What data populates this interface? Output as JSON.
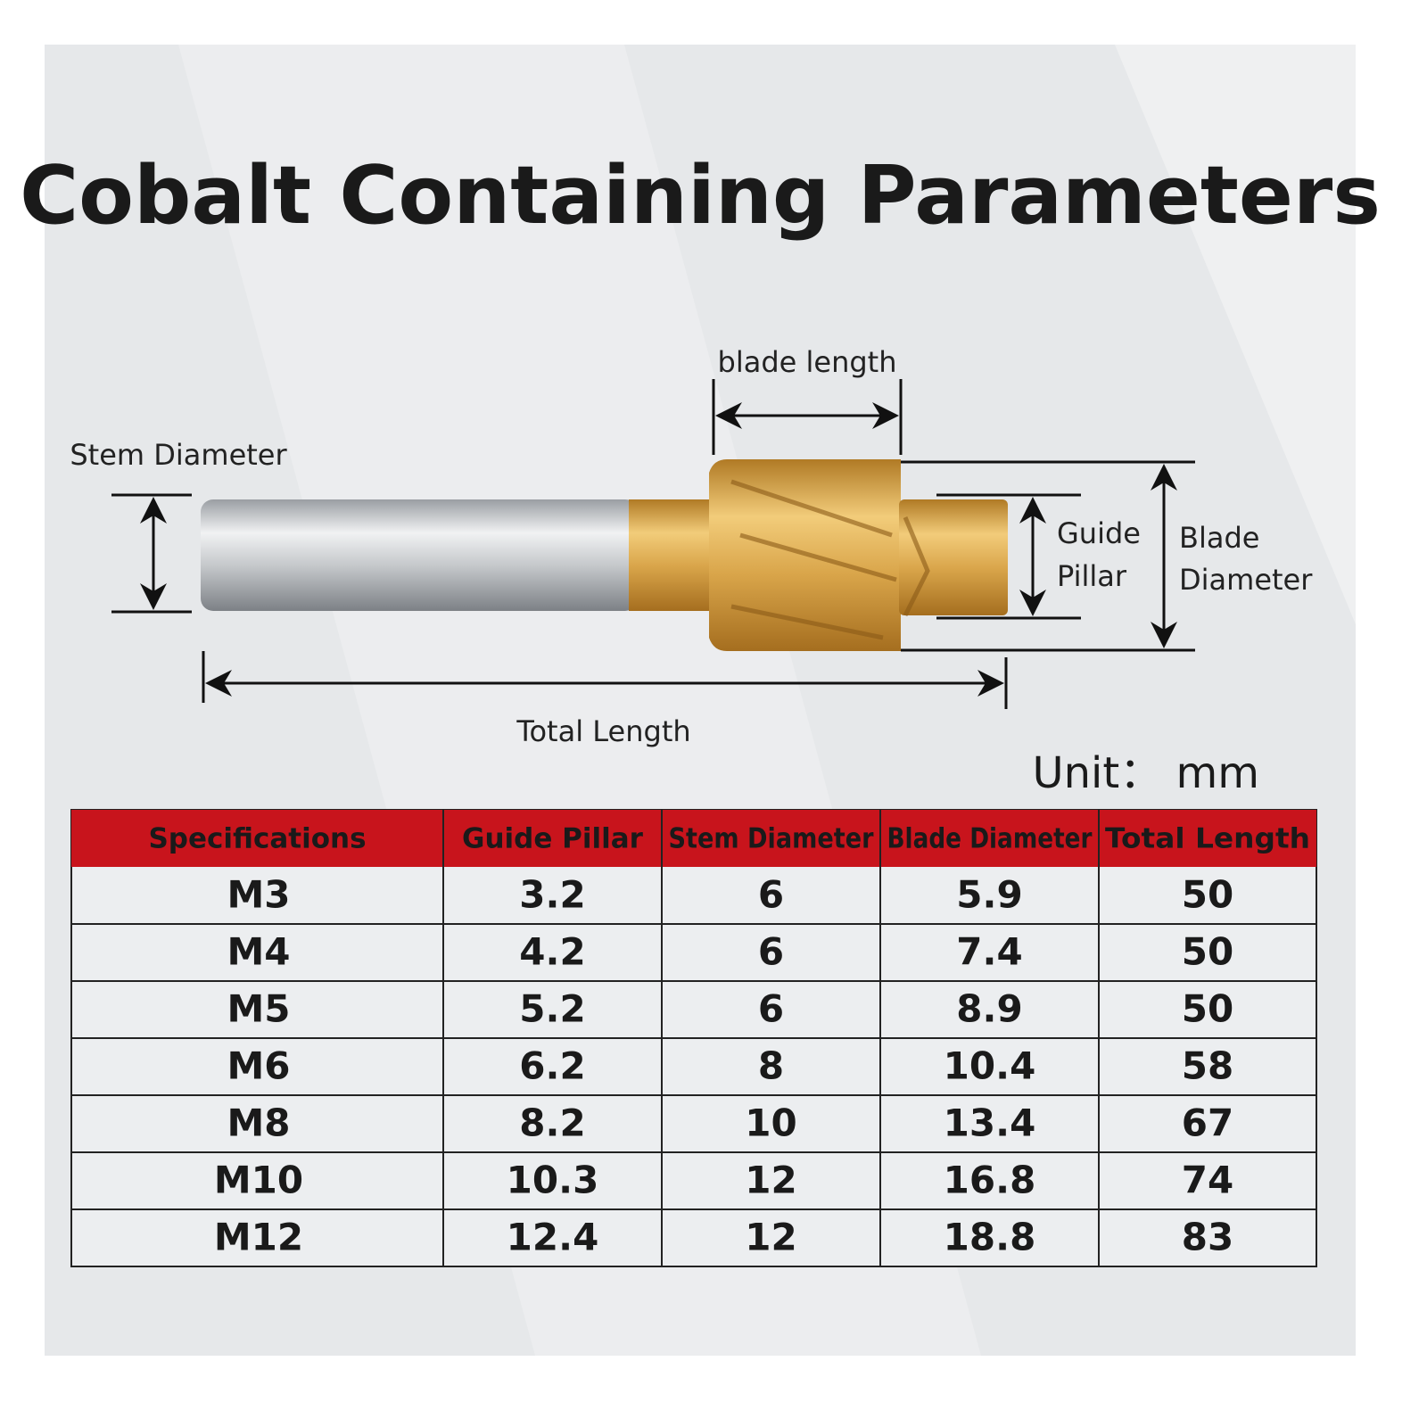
{
  "title": "Cobalt Containing Parameters",
  "diagram": {
    "blade_length": "blade length",
    "stem_diameter": "Stem Diameter",
    "guide_pillar": [
      "Guide",
      "Pillar"
    ],
    "blade_diameter": [
      "Blade",
      "Diameter"
    ],
    "total_length": "Total Length"
  },
  "unit": "Unit： mm",
  "table": {
    "header": [
      "Specifications",
      "Guide Pillar",
      "Stem Diameter",
      "Blade Diameter",
      "Total Length"
    ],
    "rows": [
      [
        "M3",
        "3.2",
        "6",
        "5.9",
        "50"
      ],
      [
        "M4",
        "4.2",
        "6",
        "7.4",
        "50"
      ],
      [
        "M5",
        "5.2",
        "6",
        "8.9",
        "50"
      ],
      [
        "M6",
        "6.2",
        "8",
        "10.4",
        "58"
      ],
      [
        "M8",
        "8.2",
        "10",
        "13.4",
        "67"
      ],
      [
        "M10",
        "10.3",
        "12",
        "16.8",
        "74"
      ],
      [
        "M12",
        "12.4",
        "12",
        "18.8",
        "83"
      ]
    ]
  }
}
